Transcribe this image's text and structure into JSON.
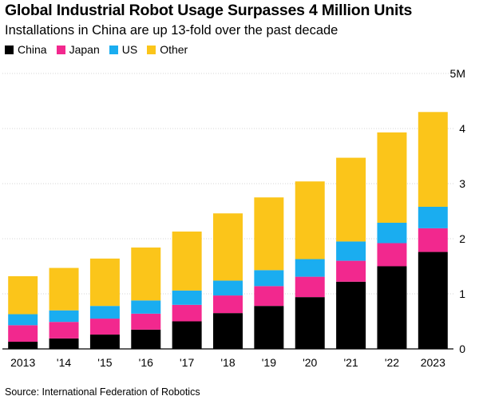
{
  "header": {
    "title": "Global Industrial Robot Usage Surpasses 4 Million Units",
    "subtitle": "Installations in China are up 13-fold over the past decade"
  },
  "legend": [
    {
      "label": "China",
      "color": "#000000"
    },
    {
      "label": "Japan",
      "color": "#f2288e"
    },
    {
      "label": "US",
      "color": "#1aadf0"
    },
    {
      "label": "Other",
      "color": "#fbc51a"
    }
  ],
  "footer": {
    "source": "Source: International Federation of Robotics"
  },
  "chart_data": {
    "type": "bar",
    "stacked": true,
    "title": "Global Industrial Robot Usage Surpasses 4 Million Units",
    "subtitle": "Installations in China are up 13-fold over the past decade",
    "categories": [
      "2013",
      "'14",
      "'15",
      "'16",
      "'17",
      "'18",
      "'19",
      "'20",
      "'21",
      "'22",
      "2023"
    ],
    "series": [
      {
        "name": "China",
        "color": "#000000",
        "values": [
          0.13,
          0.19,
          0.26,
          0.35,
          0.5,
          0.65,
          0.78,
          0.94,
          1.22,
          1.5,
          1.76
        ]
      },
      {
        "name": "Japan",
        "color": "#f2288e",
        "values": [
          0.3,
          0.3,
          0.29,
          0.29,
          0.3,
          0.32,
          0.36,
          0.37,
          0.38,
          0.42,
          0.43
        ]
      },
      {
        "name": "US",
        "color": "#1aadf0",
        "values": [
          0.2,
          0.21,
          0.23,
          0.24,
          0.26,
          0.27,
          0.29,
          0.32,
          0.35,
          0.37,
          0.39
        ]
      },
      {
        "name": "Other",
        "color": "#fbc51a",
        "values": [
          0.69,
          0.77,
          0.86,
          0.96,
          1.07,
          1.22,
          1.32,
          1.41,
          1.52,
          1.64,
          1.72
        ]
      }
    ],
    "y_ticks": [
      {
        "value": 0,
        "label": "0"
      },
      {
        "value": 1,
        "label": "1"
      },
      {
        "value": 2,
        "label": "2"
      },
      {
        "value": 3,
        "label": "3"
      },
      {
        "value": 4,
        "label": "4"
      },
      {
        "value": 5,
        "label": "5M"
      }
    ],
    "ylim": [
      0,
      5
    ],
    "xlabel": "",
    "ylabel": "",
    "grid": true,
    "legend_position": "top-left",
    "source": "Source: International Federation of Robotics"
  }
}
